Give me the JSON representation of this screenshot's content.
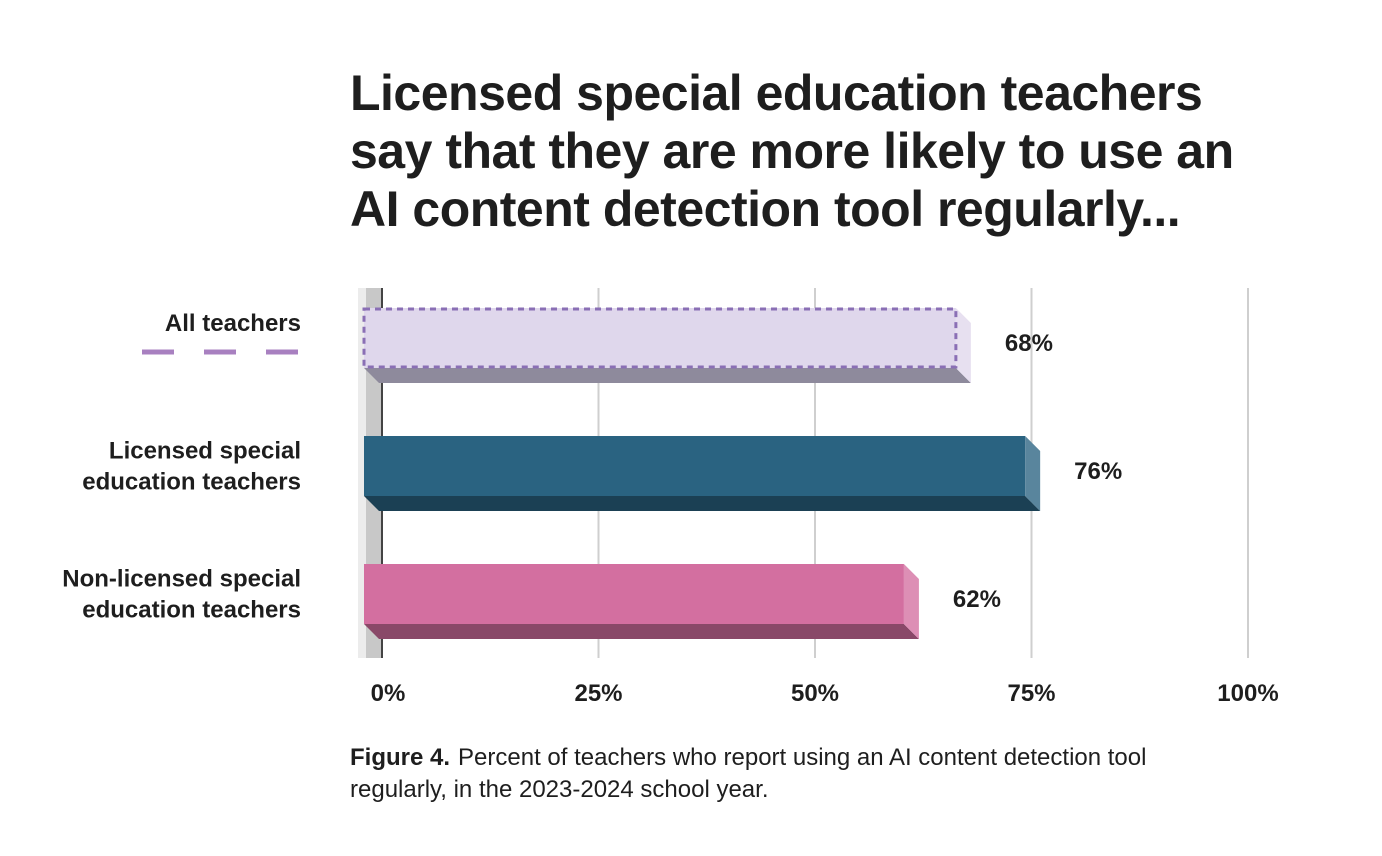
{
  "title_lines": [
    "Licensed special education teachers",
    "say that they are more likely to use an",
    "AI content detection tool regularly..."
  ],
  "caption": {
    "figure_label": "Figure 4.",
    "line1": "Percent of teachers who report using an AI content detection tool",
    "line2": "regularly, in the 2023-2024 school year."
  },
  "colors": {
    "all_teachers": "#dfd7ec",
    "all_teachers_outline": "#8a6fb5",
    "all_teachers_legend": "#a880c0",
    "licensed": "#2a6381",
    "non_licensed": "#d36fa0",
    "gridline": "#cfcfcf"
  },
  "chart_data": {
    "type": "bar",
    "orientation": "horizontal",
    "categories": [
      [
        "All teachers"
      ],
      [
        "Licensed special",
        "education teachers"
      ],
      [
        "Non-licensed special",
        "education teachers"
      ]
    ],
    "values": [
      68,
      76,
      62
    ],
    "value_labels": [
      "68%",
      "76%",
      "62%"
    ],
    "xlim": [
      0,
      100
    ],
    "xticks": [
      0,
      25,
      50,
      75,
      100
    ],
    "xtick_labels": [
      "0%",
      "25%",
      "50%",
      "75%",
      "100%"
    ],
    "grid": true
  }
}
